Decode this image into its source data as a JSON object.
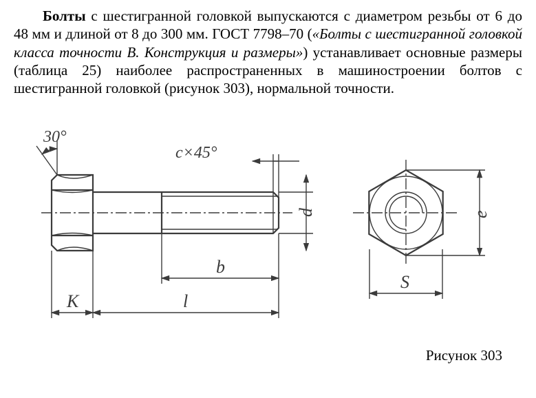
{
  "text": {
    "bold_start": "Болты",
    "para_part1": " с шестигранной головкой выпускаются с диаметром резьбы от 6 до 48 мм и длиной от 8 до 300 мм. ГОСТ 7798–70 (",
    "italic_part": "«Болты с шестигранной головкой класса точности В. Конструкция и размеры»",
    "para_part2": ") устанавливает основные размеры (таблица 25) наиболее распространенных в машиностроении болтов с шестигранной головкой (рисунок 303), нормальной точности."
  },
  "diagram": {
    "angle_label": "30°",
    "chamfer_label": "c×45°",
    "dim_K": "K",
    "dim_l": "l",
    "dim_b": "b",
    "dim_d": "d",
    "dim_S": "S",
    "dim_e": "e",
    "stroke_color": "#3b3b3b",
    "stroke_width_main": 2.2,
    "stroke_width_thin": 1.4,
    "font_family": "Georgia, serif",
    "label_fontsize": 24,
    "italic_label_fontsize": 26
  },
  "caption": "Рисунок 303"
}
